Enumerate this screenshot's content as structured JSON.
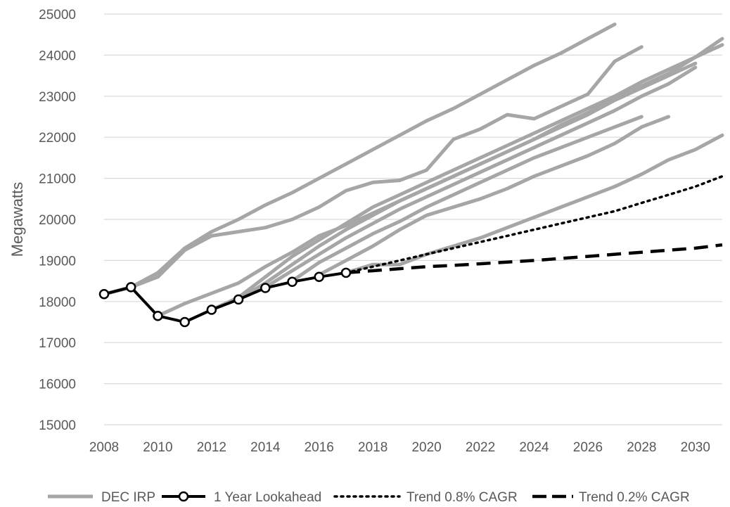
{
  "chart_data": {
    "type": "line",
    "xlabel": "",
    "ylabel": "Megawatts",
    "xlim": [
      2008,
      2031
    ],
    "ylim": [
      15000,
      25000
    ],
    "xticks": [
      "2008",
      "2010",
      "2012",
      "2014",
      "2016",
      "2018",
      "2020",
      "2022",
      "2024",
      "2026",
      "2028",
      "2030"
    ],
    "yticks": [
      "15000",
      "16000",
      "17000",
      "18000",
      "19000",
      "20000",
      "21000",
      "22000",
      "23000",
      "24000",
      "25000"
    ],
    "grid": true,
    "legend_position": "bottom",
    "legend": [
      "DEC IRP",
      "1 Year Lookahead",
      "Trend 0.8% CAGR",
      "Trend 0.2% CAGR"
    ],
    "colors": {
      "irp": "#a6a6a6",
      "lookahead": "#000000",
      "trend_08": "#000000",
      "trend_02": "#000000",
      "grid": "#d9d9d9",
      "text": "#595959"
    },
    "series": [
      {
        "name": "DEC IRP",
        "style": "solid-gray",
        "lines": [
          {
            "x": [
              2008,
              2009,
              2010,
              2011,
              2012,
              2013,
              2014,
              2015,
              2016,
              2017,
              2018,
              2019,
              2020,
              2021,
              2022,
              2023,
              2024,
              2025,
              2026,
              2027
            ],
            "y": [
              18180,
              18350,
              18700,
              19300,
              19700,
              20000,
              20350,
              20650,
              21000,
              21350,
              21700,
              22050,
              22400,
              22700,
              23050,
              23400,
              23750,
              24050,
              24400,
              24750
            ]
          },
          {
            "x": [
              2008,
              2009,
              2010,
              2011,
              2012,
              2013,
              2014,
              2015,
              2016,
              2017,
              2018,
              2019,
              2020,
              2021,
              2022,
              2023,
              2024,
              2025,
              2026,
              2027,
              2028
            ],
            "y": [
              18180,
              18350,
              18600,
              19250,
              19600,
              19700,
              19800,
              20000,
              20300,
              20700,
              20900,
              20950,
              21200,
              21950,
              22200,
              22550,
              22450,
              22750,
              23050,
              23850,
              24200
            ]
          },
          {
            "x": [
              2010,
              2011,
              2012,
              2013,
              2014,
              2015,
              2016,
              2017,
              2018,
              2019,
              2020,
              2021,
              2022,
              2023,
              2024,
              2025,
              2026,
              2027,
              2028,
              2029,
              2030,
              2031
            ],
            "y": [
              17650,
              17950,
              18200,
              18450,
              18850,
              19200,
              19600,
              19850,
              20150,
              20450,
              20750,
              21050,
              21350,
              21650,
              21950,
              22300,
              22600,
              22950,
              23250,
              23550,
              23950,
              24400
            ]
          },
          {
            "x": [
              2012,
              2013,
              2014,
              2015,
              2016,
              2017,
              2018,
              2019,
              2020,
              2021,
              2022,
              2023,
              2024,
              2025,
              2026,
              2027,
              2028,
              2029,
              2030,
              2031
            ],
            "y": [
              17800,
              18100,
              18600,
              19100,
              19500,
              19900,
              20300,
              20600,
              20900,
              21200,
              21500,
              21800,
              22100,
              22400,
              22700,
              23000,
              23350,
              23650,
              23950,
              24250
            ]
          },
          {
            "x": [
              2013,
              2014,
              2015,
              2016,
              2017,
              2018,
              2019,
              2020,
              2021,
              2022,
              2023,
              2024,
              2025,
              2026,
              2027,
              2028,
              2029,
              2030
            ],
            "y": [
              18050,
              18450,
              18900,
              19350,
              19750,
              20100,
              20450,
              20750,
              21050,
              21350,
              21650,
              21950,
              22250,
              22550,
              22900,
              23200,
              23500,
              23800
            ]
          },
          {
            "x": [
              2014,
              2015,
              2016,
              2017,
              2018,
              2019,
              2020,
              2021,
              2022,
              2023,
              2024,
              2025,
              2026,
              2027,
              2028,
              2029,
              2030
            ],
            "y": [
              18350,
              18750,
              19150,
              19550,
              19900,
              20250,
              20550,
              20850,
              21150,
              21450,
              21750,
              22050,
              22350,
              22650,
              23000,
              23300,
              23700
            ]
          },
          {
            "x": [
              2015,
              2016,
              2017,
              2018,
              2019,
              2020,
              2021,
              2022,
              2023,
              2024,
              2025,
              2026,
              2027,
              2028
            ],
            "y": [
              18500,
              18950,
              19300,
              19650,
              19950,
              20300,
              20600,
              20900,
              21200,
              21500,
              21750,
              22000,
              22250,
              22500
            ]
          },
          {
            "x": [
              2016,
              2017,
              2018,
              2019,
              2020,
              2021,
              2022,
              2023,
              2024,
              2025,
              2026,
              2027,
              2028,
              2029
            ],
            "y": [
              18650,
              19000,
              19350,
              19750,
              20100,
              20300,
              20500,
              20750,
              21050,
              21300,
              21550,
              21850,
              22250,
              22500
            ]
          },
          {
            "x": [
              2017,
              2018,
              2019,
              2020,
              2021,
              2022,
              2023,
              2024,
              2025,
              2026,
              2027,
              2028,
              2029,
              2030,
              2031
            ],
            "y": [
              18700,
              18900,
              18900,
              19150,
              19350,
              19550,
              19800,
              20050,
              20300,
              20550,
              20800,
              21100,
              21450,
              21700,
              22050
            ]
          }
        ]
      },
      {
        "name": "1 Year Lookahead",
        "style": "black-markers",
        "x": [
          2008,
          2009,
          2010,
          2011,
          2012,
          2013,
          2014,
          2015,
          2016,
          2017
        ],
        "y": [
          18180,
          18350,
          17650,
          17500,
          17800,
          18050,
          18330,
          18480,
          18600,
          18700
        ]
      },
      {
        "name": "Trend 0.8% CAGR",
        "style": "dotted",
        "x": [
          2017,
          2018,
          2019,
          2020,
          2021,
          2022,
          2023,
          2024,
          2025,
          2026,
          2027,
          2028,
          2029,
          2030,
          2031
        ],
        "y": [
          18700,
          18850,
          19000,
          19150,
          19300,
          19450,
          19600,
          19750,
          19900,
          20050,
          20200,
          20400,
          20600,
          20800,
          21050
        ]
      },
      {
        "name": "Trend 0.2% CAGR",
        "style": "dashed",
        "x": [
          2017,
          2018,
          2019,
          2020,
          2021,
          2022,
          2023,
          2024,
          2025,
          2026,
          2027,
          2028,
          2029,
          2030,
          2031
        ],
        "y": [
          18700,
          18750,
          18800,
          18850,
          18880,
          18920,
          18960,
          19000,
          19050,
          19100,
          19150,
          19200,
          19250,
          19300,
          19380
        ]
      }
    ]
  }
}
